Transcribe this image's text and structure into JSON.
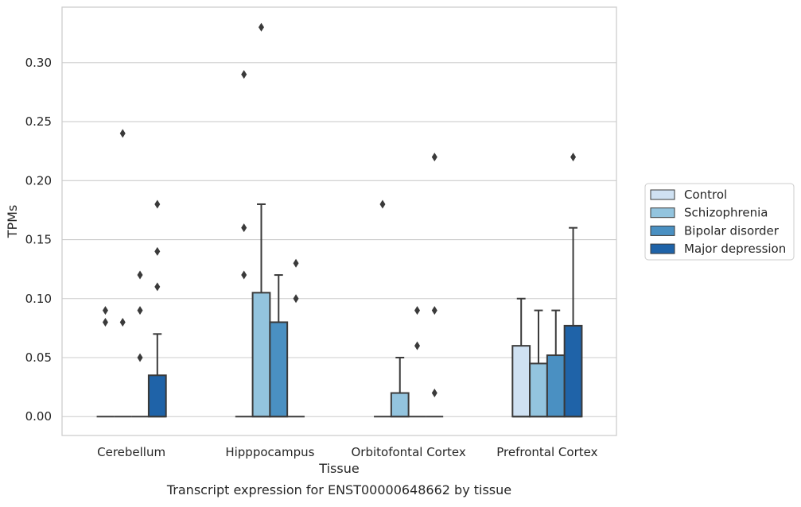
{
  "caption": "Transcript expression for ENST00000648662 by tissue",
  "chart_data": {
    "type": "boxplot",
    "xlabel": "Tissue",
    "ylabel": "TPMs",
    "ylim": [
      -0.016,
      0.347
    ],
    "yticks": [
      0.0,
      0.05,
      0.1,
      0.15,
      0.2,
      0.25,
      0.3
    ],
    "ytick_labels": [
      "0.00",
      "0.05",
      "0.10",
      "0.15",
      "0.20",
      "0.25",
      "0.30"
    ],
    "grid": true,
    "legend_position": "right",
    "categories": [
      "Cerebellum",
      "Hipppocampus",
      "Orbitofontal Cortex",
      "Prefrontal Cortex"
    ],
    "series": [
      {
        "name": "Control",
        "color": "#cfe1f2",
        "boxes": [
          {
            "q1": 0,
            "median": 0,
            "q3": 0,
            "whisker_low": 0,
            "whisker_high": 0,
            "outliers": [
              0.08,
              0.09
            ]
          },
          {
            "q1": 0,
            "median": 0,
            "q3": 0,
            "whisker_low": 0,
            "whisker_high": 0,
            "outliers": [
              0.12,
              0.16,
              0.29
            ]
          },
          {
            "q1": 0,
            "median": 0,
            "q3": 0,
            "whisker_low": 0,
            "whisker_high": 0,
            "outliers": [
              0.18
            ]
          },
          {
            "q1": 0,
            "median": 0,
            "q3": 0.06,
            "whisker_low": 0,
            "whisker_high": 0.1,
            "outliers": []
          }
        ]
      },
      {
        "name": "Schizophrenia",
        "color": "#93c4de",
        "boxes": [
          {
            "q1": 0,
            "median": 0,
            "q3": 0,
            "whisker_low": 0,
            "whisker_high": 0,
            "outliers": [
              0.08,
              0.24
            ]
          },
          {
            "q1": 0,
            "median": 0,
            "q3": 0.105,
            "whisker_low": 0,
            "whisker_high": 0.18,
            "outliers": [
              0.33
            ]
          },
          {
            "q1": 0,
            "median": 0,
            "q3": 0.02,
            "whisker_low": 0,
            "whisker_high": 0.05,
            "outliers": []
          },
          {
            "q1": 0,
            "median": 0,
            "q3": 0.045,
            "whisker_low": 0,
            "whisker_high": 0.09,
            "outliers": []
          }
        ]
      },
      {
        "name": "Bipolar disorder",
        "color": "#4a90c2",
        "boxes": [
          {
            "q1": 0,
            "median": 0,
            "q3": 0,
            "whisker_low": 0,
            "whisker_high": 0,
            "outliers": [
              0.05,
              0.09,
              0.12
            ]
          },
          {
            "q1": 0,
            "median": 0,
            "q3": 0.08,
            "whisker_low": 0,
            "whisker_high": 0.12,
            "outliers": []
          },
          {
            "q1": 0,
            "median": 0,
            "q3": 0,
            "whisker_low": 0,
            "whisker_high": 0,
            "outliers": [
              0.06,
              0.09
            ]
          },
          {
            "q1": 0,
            "median": 0,
            "q3": 0.052,
            "whisker_low": 0,
            "whisker_high": 0.09,
            "outliers": []
          }
        ]
      },
      {
        "name": "Major depression",
        "color": "#1f63a8",
        "boxes": [
          {
            "q1": 0,
            "median": 0,
            "q3": 0.035,
            "whisker_low": 0,
            "whisker_high": 0.07,
            "outliers": [
              0.11,
              0.14,
              0.18
            ]
          },
          {
            "q1": 0,
            "median": 0,
            "q3": 0,
            "whisker_low": 0,
            "whisker_high": 0,
            "outliers": [
              0.1,
              0.13
            ]
          },
          {
            "q1": 0,
            "median": 0,
            "q3": 0,
            "whisker_low": 0,
            "whisker_high": 0,
            "outliers": [
              0.02,
              0.09,
              0.22
            ]
          },
          {
            "q1": 0,
            "median": 0,
            "q3": 0.077,
            "whisker_low": 0,
            "whisker_high": 0.16,
            "outliers": [
              0.22
            ]
          }
        ]
      }
    ]
  }
}
